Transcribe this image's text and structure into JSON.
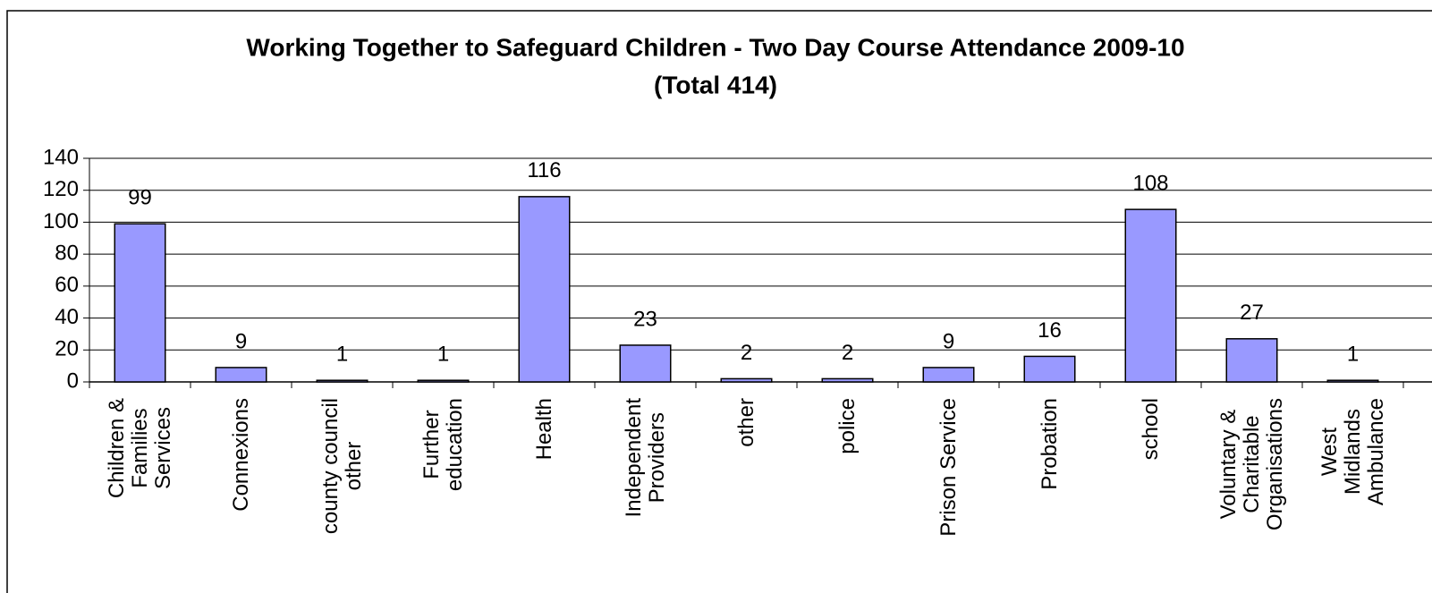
{
  "chart_data": {
    "type": "bar",
    "title": "Working Together to Safeguard Children - Two Day Course Attendance 2009-10",
    "subtitle": "(Total 414)",
    "categories": [
      "Children &\nFamilies\nServices",
      "Connexions",
      "county council\nother",
      "Further\neducation",
      "Health",
      "Independent\nProviders",
      "other",
      "police",
      "Prison Service",
      "Probation",
      "school",
      "Voluntary &\nCharitable\nOrganisations",
      "West\nMidlands\nAmbulance"
    ],
    "values": [
      99,
      9,
      1,
      1,
      116,
      23,
      2,
      2,
      9,
      16,
      108,
      27,
      1
    ],
    "color": "#9999ff",
    "ylim": [
      0,
      140
    ],
    "yticks": [
      0,
      20,
      40,
      60,
      80,
      100,
      120,
      140
    ],
    "grid": true
  }
}
